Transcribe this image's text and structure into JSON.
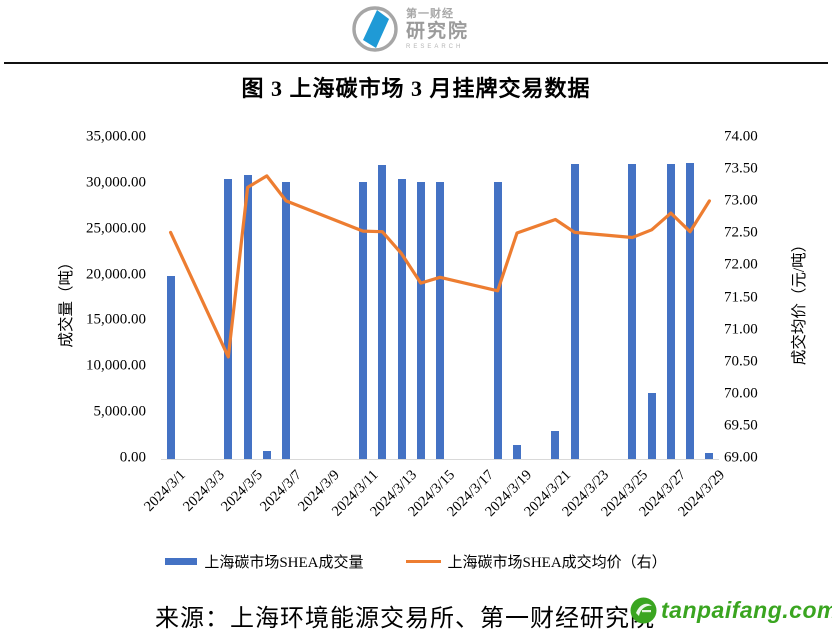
{
  "header": {
    "brand_top": "第一财经",
    "brand_main": "研究院",
    "brand_sub": "RESEARCH"
  },
  "chart_data": {
    "type": "combo-bar-line",
    "title": "图 3 上海碳市场 3 月挂牌交易数据",
    "grid": false,
    "legend_position": "bottom",
    "n_slots": 29,
    "x_tick_labels": [
      "2024/3/1",
      "2024/3/3",
      "2024/3/5",
      "2024/3/7",
      "2024/3/9",
      "2024/3/11",
      "2024/3/13",
      "2024/3/15",
      "2024/3/17",
      "2024/3/19",
      "2024/3/21",
      "2024/3/23",
      "2024/3/25",
      "2024/3/27",
      "2024/3/29"
    ],
    "left_axis": {
      "title": "成交量（吨）",
      "min": 0,
      "max": 35000,
      "step": 5000,
      "tick_labels": [
        "35,000.00",
        "30,000.00",
        "25,000.00",
        "20,000.00",
        "15,000.00",
        "10,000.00",
        "5,000.00",
        "0.00"
      ]
    },
    "right_axis": {
      "title": "成交均价（元/吨）",
      "min": 69,
      "max": 74,
      "step": 0.5,
      "tick_labels": [
        "74.00",
        "73.50",
        "73.00",
        "72.50",
        "72.00",
        "71.50",
        "71.00",
        "70.50",
        "70.00",
        "69.50",
        "69.00"
      ]
    },
    "series": [
      {
        "name": "上海碳市场SHEA成交量",
        "type": "bar",
        "color": "#4472C4",
        "axis": "left"
      },
      {
        "name": "上海碳市场SHEA成交均价（右）",
        "type": "line",
        "color": "#ED7D31",
        "axis": "right"
      }
    ],
    "points": [
      {
        "date": "2024/3/1",
        "day": 1,
        "volume": 20000,
        "price": 72.53
      },
      {
        "date": "2024/3/4",
        "day": 4,
        "volume": 30500,
        "price": 70.59
      },
      {
        "date": "2024/3/5",
        "day": 5,
        "volume": 31000,
        "price": 73.23
      },
      {
        "date": "2024/3/6",
        "day": 6,
        "volume": 900,
        "price": 73.41
      },
      {
        "date": "2024/3/7",
        "day": 7,
        "volume": 30200,
        "price": 73.02
      },
      {
        "date": "2024/3/11",
        "day": 11,
        "volume": 30200,
        "price": 72.55
      },
      {
        "date": "2024/3/12",
        "day": 12,
        "volume": 32100,
        "price": 72.54
      },
      {
        "date": "2024/3/13",
        "day": 13,
        "volume": 30500,
        "price": 72.2
      },
      {
        "date": "2024/3/14",
        "day": 14,
        "volume": 30200,
        "price": 71.74
      },
      {
        "date": "2024/3/15",
        "day": 15,
        "volume": 30200,
        "price": 71.83
      },
      {
        "date": "2024/3/18",
        "day": 18,
        "volume": 30200,
        "price": 71.62
      },
      {
        "date": "2024/3/19",
        "day": 19,
        "volume": 1500,
        "price": 72.52
      },
      {
        "date": "2024/3/21",
        "day": 21,
        "volume": 3100,
        "price": 72.73
      },
      {
        "date": "2024/3/22",
        "day": 22,
        "volume": 32200,
        "price": 72.53
      },
      {
        "date": "2024/3/25",
        "day": 25,
        "volume": 32200,
        "price": 72.45
      },
      {
        "date": "2024/3/26",
        "day": 26,
        "volume": 7200,
        "price": 72.57
      },
      {
        "date": "2024/3/27",
        "day": 27,
        "volume": 32200,
        "price": 72.83
      },
      {
        "date": "2024/3/28",
        "day": 28,
        "volume": 32300,
        "price": 72.54
      },
      {
        "date": "2024/3/29",
        "day": 29,
        "volume": 600,
        "price": 73.02
      }
    ]
  },
  "footer": {
    "source": "来源：上海环境能源交易所、第一财经研究院",
    "watermark": "tanpaifang.com"
  }
}
